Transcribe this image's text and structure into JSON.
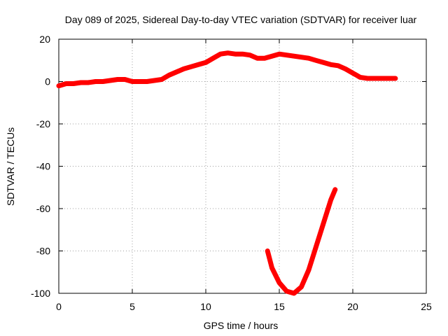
{
  "chart_data": {
    "type": "line",
    "title": "Day 089 of 2025, Sidereal Day-to-day VTEC variation (SDTVAR) for receiver luar",
    "xlabel": "GPS time / hours",
    "ylabel": "SDTVAR / TECUs",
    "xlim": [
      0,
      25
    ],
    "ylim": [
      -100,
      20
    ],
    "xticks": [
      0,
      5,
      10,
      15,
      20,
      25
    ],
    "yticks": [
      -100,
      -80,
      -60,
      -40,
      -20,
      0,
      20
    ],
    "grid": true,
    "series_color": "#ff0000",
    "series": [
      {
        "x": [
          0,
          0.5,
          1,
          1.5,
          2,
          2.5,
          3,
          3.5,
          4,
          4.5,
          5,
          5.5,
          6,
          6.5,
          7,
          7.5,
          8,
          8.5,
          9,
          9.5,
          10,
          10.5,
          11,
          11.5,
          12,
          12.5,
          13,
          13.5,
          14,
          14.5,
          15,
          15.5,
          16,
          16.5,
          17,
          17.5,
          18,
          18.5,
          19,
          19.5,
          20,
          20.5,
          21,
          21.5,
          22,
          22.5,
          22.9
        ],
        "y": [
          -2,
          -1,
          -1,
          -0.5,
          -0.5,
          0,
          0,
          0.5,
          1,
          1,
          0,
          0,
          0,
          0.5,
          1,
          3,
          4.5,
          6,
          7,
          8,
          9,
          11,
          13,
          13.5,
          13,
          13,
          12.5,
          11,
          11,
          12,
          13,
          12.5,
          12,
          11.5,
          11,
          10,
          9,
          8,
          7.5,
          6,
          4,
          2,
          1.5,
          1.5,
          1.5,
          1.5,
          1.5
        ]
      },
      {
        "x": [
          14.2,
          14.5,
          15,
          15.5,
          16,
          16.5,
          17,
          17.5,
          18,
          18.5,
          18.8
        ],
        "y": [
          -80,
          -88,
          -95,
          -99,
          -100,
          -97,
          -89,
          -78,
          -67,
          -56,
          -51
        ]
      }
    ]
  }
}
